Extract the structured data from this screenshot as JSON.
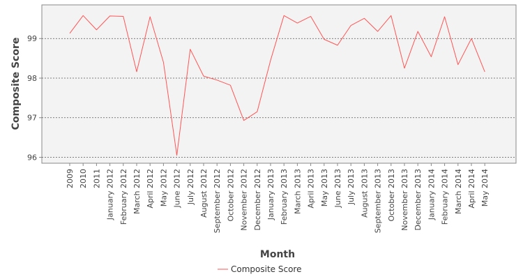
{
  "chart_data": {
    "type": "line",
    "title": "",
    "xlabel": "Month",
    "ylabel": "Composite Score",
    "categories": [
      "2009",
      "2010",
      "2011",
      "January 2012",
      "February 2012",
      "March 2012",
      "April 2012",
      "May 2012",
      "June 2012",
      "July 2012",
      "August 2012",
      "September 2012",
      "October 2012",
      "November 2012",
      "December 2012",
      "January 2013",
      "February 2013",
      "March 2013",
      "April 2013",
      "May 2013",
      "June 2013",
      "July 2013",
      "August 2013",
      "September 2013",
      "October 2013",
      "November 2013",
      "December 2013",
      "January 2014",
      "February 2014",
      "March 2014",
      "April 2014",
      "May 2014"
    ],
    "series": [
      {
        "name": "Composite Score",
        "color": "#ff5555",
        "values": [
          99.13,
          99.58,
          99.22,
          99.57,
          99.56,
          98.16,
          99.55,
          98.4,
          96.05,
          98.73,
          98.05,
          97.95,
          97.82,
          96.93,
          97.15,
          98.45,
          99.58,
          99.39,
          99.56,
          98.98,
          98.83,
          99.33,
          99.51,
          99.18,
          99.58,
          98.25,
          99.18,
          98.54,
          99.55,
          98.34,
          99.0,
          98.16
        ]
      }
    ],
    "yticks": [
      96,
      97,
      98,
      99
    ],
    "ylim": [
      95.85,
      99.85
    ],
    "grid": true,
    "legend_position": "bottom-center",
    "plot_background": "#f3f3f3",
    "grid_color": "#555555"
  }
}
